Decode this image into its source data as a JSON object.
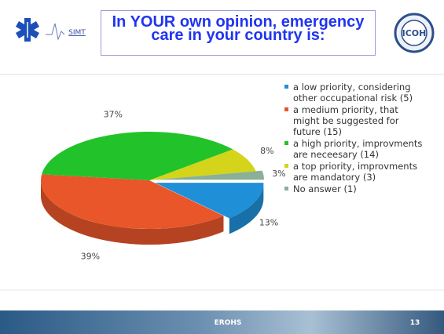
{
  "slide": {
    "logo_text": "SIMT",
    "icoh": "ICOH",
    "footer": "EROHS",
    "page": "13"
  },
  "chart_data": {
    "type": "pie",
    "title": "In YOUR own opinion, emergency care in your country is:",
    "categories": [
      "a low priority, considering other occupational risk (5)",
      "a medium priority, that might be suggested for future (15)",
      "a high priority, improvments are neceesary (14)",
      "a top priority, improvments are mandatory (3)",
      "No answer (1)"
    ],
    "values": [
      13,
      39,
      37,
      8,
      3
    ],
    "value_labels": [
      "13%",
      "39%",
      "37%",
      "8%",
      "3%"
    ],
    "colors": [
      "#1f8fd8",
      "#e8562a",
      "#22c32a",
      "#d4d41a",
      "#8ab098"
    ]
  }
}
